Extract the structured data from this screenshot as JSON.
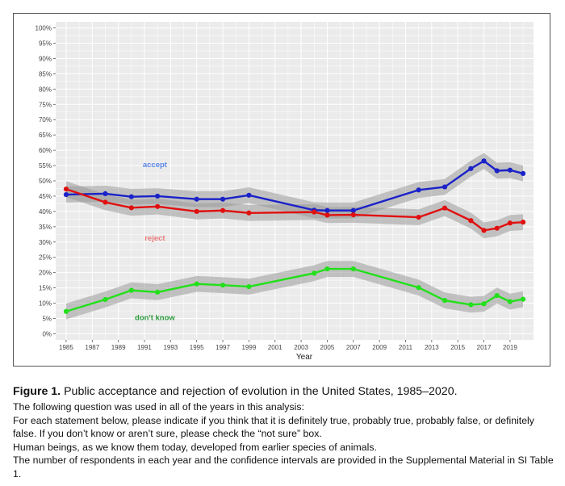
{
  "chart_data": {
    "type": "line",
    "xlabel": "Year",
    "ylabel": "",
    "xlim": [
      1984.2,
      2020.8
    ],
    "ylim": [
      -2,
      102
    ],
    "y_ticks": [
      0,
      5,
      10,
      15,
      20,
      25,
      30,
      35,
      40,
      45,
      50,
      55,
      60,
      65,
      70,
      75,
      80,
      85,
      90,
      95,
      100
    ],
    "y_tick_labels": [
      "0%",
      "5%",
      "10%",
      "15%",
      "20%",
      "25%",
      "30%",
      "35%",
      "40%",
      "45%",
      "50%",
      "55%",
      "60%",
      "65%",
      "70%",
      "75%",
      "80%",
      "85%",
      "90%",
      "95%",
      "100%"
    ],
    "x_ticks": [
      1985,
      1987,
      1989,
      1991,
      1993,
      1995,
      1997,
      1999,
      2001,
      2003,
      2005,
      2007,
      2009,
      2011,
      2013,
      2015,
      2017,
      2019
    ],
    "x_tick_labels": [
      "1985",
      "1987",
      "1989",
      "1991",
      "1993",
      "1995",
      "1997",
      "1999",
      "2001",
      "2003",
      "2005",
      "2007",
      "2009",
      "2011",
      "2013",
      "2015",
      "2017",
      "2019"
    ],
    "grid": true,
    "series": [
      {
        "name": "accept",
        "color": "#1a22c8",
        "label_color": "#5a87e8",
        "label_at": [
          1991.8,
          54.5
        ],
        "x": [
          1985,
          1988,
          1990,
          1992,
          1995,
          1997,
          1999,
          2004,
          2005,
          2007,
          2012,
          2014,
          2016,
          2017,
          2018,
          2019,
          2020
        ],
        "values": [
          45.5,
          45.8,
          44.8,
          45.0,
          44.0,
          44.0,
          45.3,
          40.4,
          40.3,
          40.3,
          47.0,
          48.0,
          54.0,
          56.5,
          53.3,
          53.5,
          52.4
        ]
      },
      {
        "name": "reject",
        "color": "#e01010",
        "label_color": "#e87a7a",
        "label_at": [
          1991.8,
          30.5
        ],
        "x": [
          1985,
          1988,
          1990,
          1992,
          1995,
          1997,
          1999,
          2004,
          2005,
          2007,
          2012,
          2014,
          2016,
          2017,
          2018,
          2019,
          2020
        ],
        "values": [
          47.3,
          43.0,
          41.2,
          41.6,
          40.0,
          40.3,
          39.5,
          39.8,
          38.8,
          38.9,
          38.1,
          41.1,
          37.0,
          33.8,
          34.5,
          36.2,
          36.5
        ]
      },
      {
        "name": "don't know",
        "color": "#22e01a",
        "label_color": "#2a9a3a",
        "label_at": [
          1991.8,
          4.5
        ],
        "x": [
          1985,
          1988,
          1990,
          1992,
          1995,
          1997,
          1999,
          2004,
          2005,
          2007,
          2012,
          2014,
          2016,
          2017,
          2018,
          2019,
          2020
        ],
        "values": [
          7.3,
          11.2,
          14.2,
          13.6,
          16.3,
          15.9,
          15.4,
          19.8,
          21.2,
          21.2,
          15.1,
          10.9,
          9.5,
          9.8,
          12.5,
          10.5,
          11.3
        ]
      }
    ]
  },
  "caption": {
    "figure_label": "Figure 1.",
    "title": "Public acceptance and rejection of evolution in the United States, 1985–2020.",
    "line1": "The following question was used in all of the years in this analysis:",
    "line2": "For each statement below, please indicate if you think that it is definitely true, probably true, probably false, or definitely false. If you don’t know or aren’t sure, please check the “not sure” box.",
    "line3": "Human beings, as we know them today, developed from earlier species of animals.",
    "line4": "The number of respondents in each year and the confidence intervals are provided in the Supplemental Material in SI Table 1."
  }
}
